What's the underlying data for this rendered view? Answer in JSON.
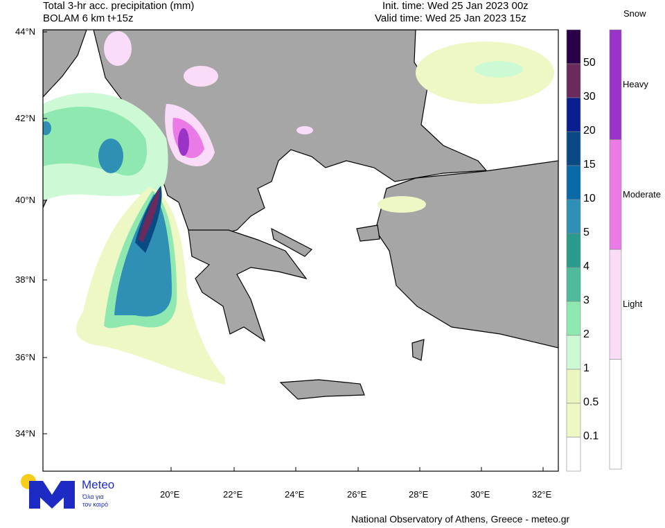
{
  "header": {
    "title": "Total 3-hr acc. precipitation (mm)",
    "model": "BOLAM 6 km t+15z",
    "init_time": "Init. time: Wed 25 Jan 2023 00z",
    "valid_time": "Valid time: Wed 25 Jan 2023 15z"
  },
  "axes": {
    "lat_ticks": [
      "44°N",
      "42°N",
      "40°N",
      "38°N",
      "36°N",
      "34°N"
    ],
    "lon_ticks": [
      "20°E",
      "22°E",
      "24°E",
      "26°E",
      "28°E",
      "30°E",
      "32°E"
    ]
  },
  "precip_colorbar": {
    "labels": [
      "50",
      "30",
      "20",
      "15",
      "10",
      "5",
      "4",
      "3",
      "2",
      "1",
      "0.5",
      "0.1"
    ],
    "colors": [
      "#2a0048",
      "#6b2a5e",
      "#0a1f8f",
      "#0a4a84",
      "#0a6aa8",
      "#2f8fb4",
      "#2a9a8c",
      "#4dbb9c",
      "#8fe8b0",
      "#cdfad4",
      "#eaf6c0",
      "#edf8c5",
      "#ffffff"
    ]
  },
  "snow_colorbar": {
    "title": "Snow",
    "labels": [
      "Heavy",
      "Moderate",
      "Light"
    ],
    "colors": [
      "#9a33c8",
      "#ea7be6",
      "#fbdcf8",
      "#ffffff"
    ]
  },
  "logo": {
    "name": "Meteo",
    "tagline1": "Όλα για",
    "tagline2": "τον καιρό",
    "sun_color": "#f7cd1a",
    "brand_color": "#1d2bc4"
  },
  "footer": "National Observatory of Athens, Greece - meteo.gr"
}
